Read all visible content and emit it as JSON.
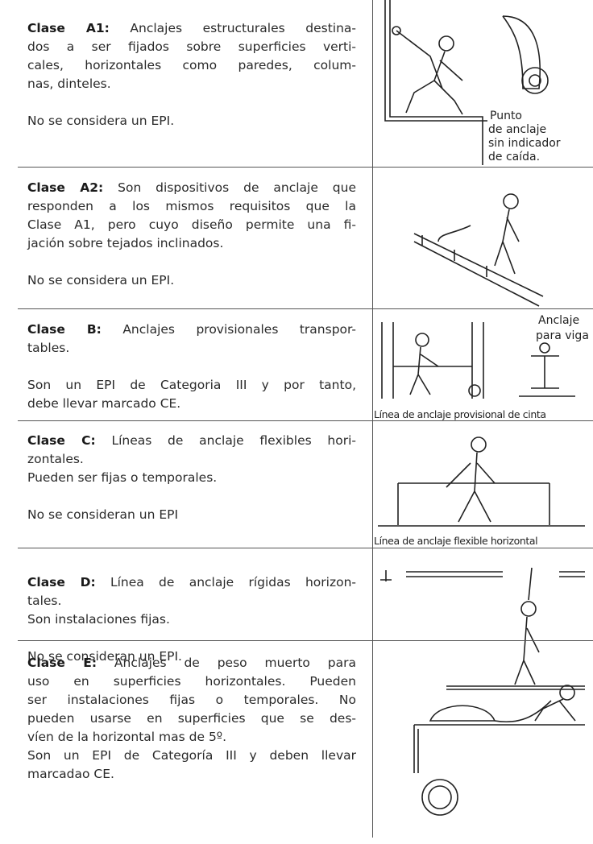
{
  "rows": [
    {
      "label": "Clase A1:",
      "paragraphs": [
        [
          "Anclajes estructurales destina-",
          "dos a ser fijados sobre superficies verti-",
          "cales, horizontales como paredes, colum-",
          "nas, dinteles."
        ],
        [
          "No se considera un EPI."
        ]
      ],
      "captions": [
        "Punto",
        "de anclaje",
        "sin indicador",
        "de caída."
      ]
    },
    {
      "label": "Clase A2:",
      "paragraphs": [
        [
          "Son dispositivos de anclaje que",
          "responden a los mismos requisitos que la",
          "Clase A1, pero cuyo diseño permite una fi-",
          "jación sobre tejados inclinados."
        ],
        [
          "No se considera un EPI."
        ]
      ],
      "captions": []
    },
    {
      "label": "Clase B:",
      "paragraphs": [
        [
          "Anclajes provisionales transpor-",
          "tables."
        ],
        [
          "Son un EPI de Categoria III y por tanto,",
          "debe llevar marcado CE."
        ]
      ],
      "captions": [
        "Anclaje",
        "para viga",
        "Línea de anclaje provisional de cinta"
      ]
    },
    {
      "label": "Clase C:",
      "paragraphs": [
        [
          "Líneas de anclaje flexibles hori-",
          "zontales.",
          "Pueden ser fijas o temporales."
        ],
        [
          "No se consideran un EPI"
        ]
      ],
      "captions": [
        "Línea de anclaje flexible horizontal"
      ]
    },
    {
      "label": "Clase D:",
      "paragraphs": [
        [
          "Línea de anclaje rígidas horizon-",
          "tales.",
          "Son instalaciones fijas."
        ],
        [
          "No se consideran un EPI."
        ]
      ],
      "captions": []
    },
    {
      "label": "Clase E:",
      "paragraphs": [
        [
          "Anclajes de peso muerto para",
          "uso en superficies horizontales. Pueden",
          "ser instalaciones fijas o temporales. No",
          "pueden usarse en superficies que se des-",
          "víen de la horizontal mas de 5º.",
          "Son un EPI de Categoría III y deben llevar",
          "marcadao CE."
        ]
      ],
      "captions": []
    }
  ]
}
